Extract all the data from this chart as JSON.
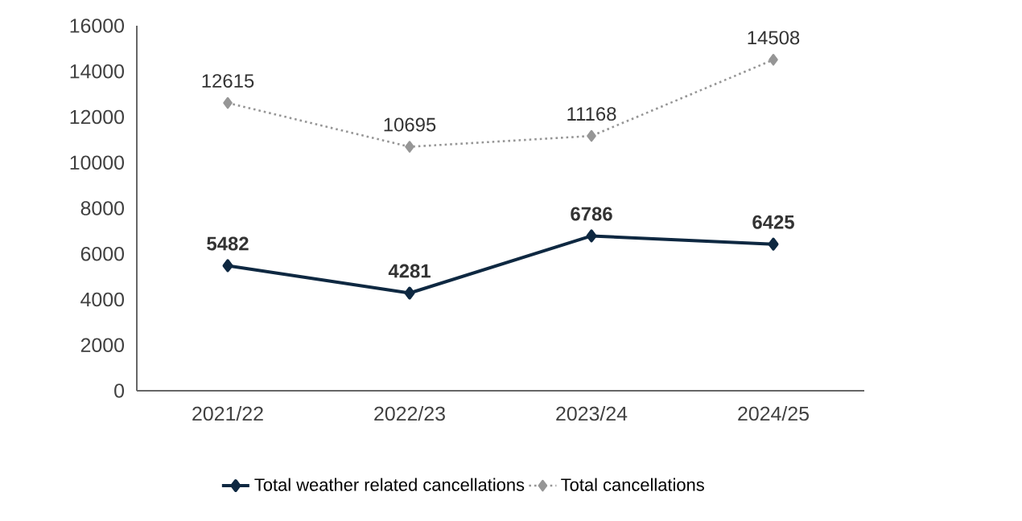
{
  "chart_data": {
    "type": "line",
    "categories": [
      "2021/22",
      "2022/23",
      "2023/24",
      "2024/25"
    ],
    "series": [
      {
        "name": "Total weather related cancellations",
        "color": "#0e2841",
        "values": [
          5482,
          4281,
          6786,
          6425
        ],
        "line_style": "solid"
      },
      {
        "name": "Total cancellations",
        "color": "#969696",
        "values": [
          12615,
          10695,
          11168,
          14508
        ],
        "line_style": "dotted"
      }
    ],
    "ylim": [
      0,
      16000
    ],
    "yticks": [
      0,
      2000,
      4000,
      6000,
      8000,
      10000,
      12000,
      14000,
      16000
    ],
    "grid": false,
    "legend": "bottom",
    "marker": "diamond",
    "data_labels": true
  }
}
